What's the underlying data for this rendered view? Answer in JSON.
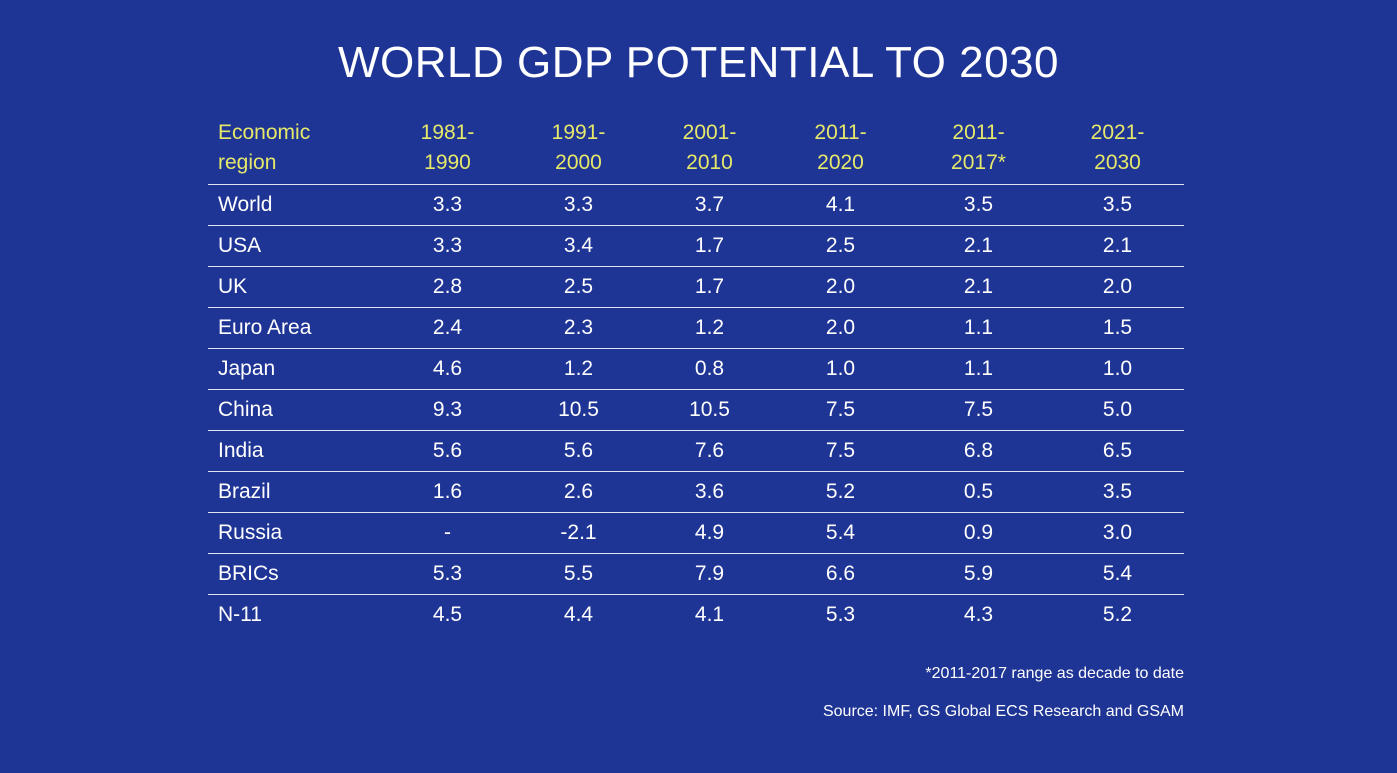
{
  "chart_data": {
    "type": "table",
    "title": "WORLD GDP POTENTIAL TO 2030",
    "columns": [
      [
        "Economic",
        "region"
      ],
      [
        "1981-",
        "1990"
      ],
      [
        "1991-",
        "2000"
      ],
      [
        "2001-",
        "2010"
      ],
      [
        "2011-",
        "2020"
      ],
      [
        "2011-",
        "2017*"
      ],
      [
        "2021-",
        "2030"
      ]
    ],
    "rows": [
      {
        "region": "World",
        "values": [
          "3.3",
          "3.3",
          "3.7",
          "4.1",
          "3.5",
          "3.5"
        ]
      },
      {
        "region": "USA",
        "values": [
          "3.3",
          "3.4",
          "1.7",
          "2.5",
          "2.1",
          "2.1"
        ]
      },
      {
        "region": "UK",
        "values": [
          "2.8",
          "2.5",
          "1.7",
          "2.0",
          "2.1",
          "2.0"
        ]
      },
      {
        "region": "Euro Area",
        "values": [
          "2.4",
          "2.3",
          "1.2",
          "2.0",
          "1.1",
          "1.5"
        ]
      },
      {
        "region": "Japan",
        "values": [
          "4.6",
          "1.2",
          "0.8",
          "1.0",
          "1.1",
          "1.0"
        ]
      },
      {
        "region": "China",
        "values": [
          "9.3",
          "10.5",
          "10.5",
          "7.5",
          "7.5",
          "5.0"
        ]
      },
      {
        "region": "India",
        "values": [
          "5.6",
          "5.6",
          "7.6",
          "7.5",
          "6.8",
          "6.5"
        ]
      },
      {
        "region": "Brazil",
        "values": [
          "1.6",
          "2.6",
          "3.6",
          "5.2",
          "0.5",
          "3.5"
        ]
      },
      {
        "region": "Russia",
        "values": [
          "-",
          "-2.1",
          "4.9",
          "5.4",
          "0.9",
          "3.0"
        ]
      },
      {
        "region": "BRICs",
        "values": [
          "5.3",
          "5.5",
          "7.9",
          "6.6",
          "5.9",
          "5.4"
        ]
      },
      {
        "region": "N-11",
        "values": [
          "4.5",
          "4.4",
          "4.1",
          "5.3",
          "4.3",
          "5.2"
        ]
      }
    ],
    "footnote": "*2011-2017 range as decade to date",
    "source": "Source: IMF, GS Global ECS Research and GSAM",
    "colors": {
      "background": "#1f3595",
      "header_text": "#e6e86a",
      "body_text": "#ffffff",
      "rule": "#e0e4f2"
    }
  }
}
